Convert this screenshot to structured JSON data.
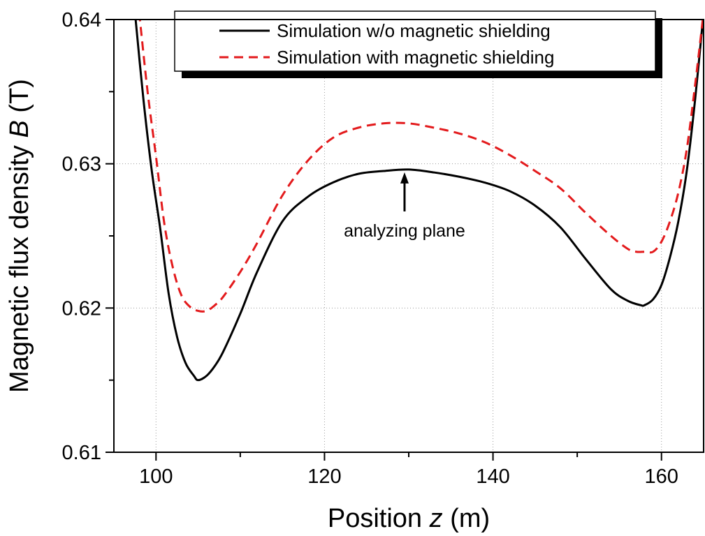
{
  "chart_data": {
    "type": "line",
    "title": "",
    "xlabel_prefix": "Position ",
    "xlabel_var": "z",
    "xlabel_suffix": " (m)",
    "ylabel_prefix": "Magnetic flux density ",
    "ylabel_var": "B",
    "ylabel_suffix": " (T)",
    "xlim": [
      95,
      165
    ],
    "ylim": [
      0.61,
      0.64
    ],
    "x_ticks": [
      100,
      120,
      140,
      160
    ],
    "x_tick_labels": [
      "100",
      "120",
      "140",
      "160"
    ],
    "y_ticks": [
      0.61,
      0.62,
      0.63,
      0.64
    ],
    "y_tick_labels": [
      "0.61",
      "0.62",
      "0.63",
      "0.64"
    ],
    "grid": true,
    "legend_position": "top",
    "series": [
      {
        "name": "Simulation w/o  magnetic shielding",
        "color": "#000000",
        "style": "solid",
        "x": [
          97.5,
          98.5,
          99.5,
          100.5,
          101.5,
          102.5,
          103.5,
          104.5,
          105.0,
          106.0,
          107.0,
          108.0,
          110.0,
          112.0,
          115.0,
          118.0,
          121.0,
          124.0,
          127.0,
          130.0,
          133.0,
          136.0,
          139.0,
          142.0,
          145.0,
          148.0,
          151.0,
          154.0,
          156.0,
          157.5,
          158.0,
          159.0,
          160.0,
          161.0,
          162.0,
          163.0,
          164.0,
          165.0
        ],
        "y": [
          0.6405,
          0.6345,
          0.6295,
          0.6255,
          0.621,
          0.618,
          0.6162,
          0.6153,
          0.615,
          0.6153,
          0.616,
          0.617,
          0.6196,
          0.6225,
          0.626,
          0.6277,
          0.6287,
          0.6293,
          0.6295,
          0.6296,
          0.6294,
          0.6291,
          0.6287,
          0.6281,
          0.6271,
          0.6256,
          0.6234,
          0.6213,
          0.6205,
          0.6202,
          0.6202,
          0.6206,
          0.6216,
          0.6235,
          0.626,
          0.6295,
          0.6345,
          0.6405
        ]
      },
      {
        "name": "Simulation with magnetic shielding",
        "color": "#e31a1c",
        "style": "dashed",
        "x": [
          98.0,
          99.0,
          100.0,
          101.0,
          102.0,
          103.0,
          104.0,
          105.0,
          106.0,
          107.0,
          108.0,
          110.0,
          112.0,
          115.0,
          118.0,
          121.0,
          124.0,
          127.0,
          130.0,
          133.0,
          136.0,
          139.0,
          142.0,
          145.0,
          148.0,
          151.0,
          154.0,
          156.0,
          157.0,
          158.0,
          159.0,
          160.0,
          161.0,
          162.0,
          163.0,
          164.0,
          165.0
        ],
        "y": [
          0.6405,
          0.635,
          0.6305,
          0.6258,
          0.6228,
          0.6209,
          0.6201,
          0.6198,
          0.6198,
          0.6202,
          0.6208,
          0.6225,
          0.6245,
          0.6278,
          0.6302,
          0.6318,
          0.6325,
          0.6328,
          0.6328,
          0.6325,
          0.6321,
          0.6315,
          0.6306,
          0.6295,
          0.6283,
          0.6266,
          0.625,
          0.6241,
          0.6239,
          0.6239,
          0.6239,
          0.6246,
          0.626,
          0.628,
          0.631,
          0.6355,
          0.6405
        ]
      }
    ],
    "annotations": [
      {
        "text": "analyzing plane",
        "arrow_to": [
          129.5,
          0.6296
        ]
      }
    ]
  }
}
